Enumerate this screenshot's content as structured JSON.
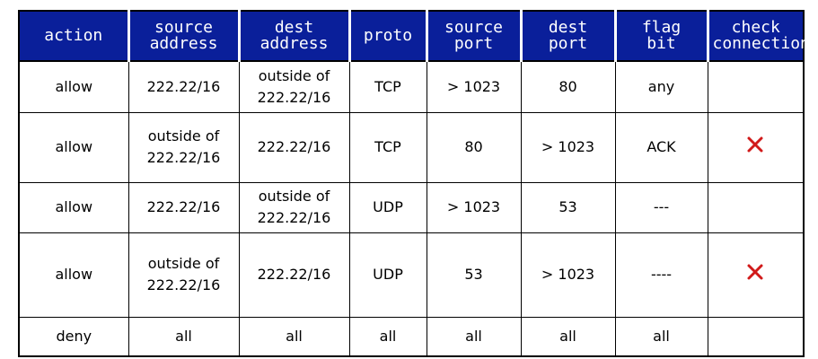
{
  "headers": [
    [
      "action"
    ],
    [
      "source",
      "address"
    ],
    [
      "dest",
      "address"
    ],
    [
      "proto"
    ],
    [
      "source",
      "port"
    ],
    [
      "dest",
      "port"
    ],
    [
      "flag",
      "bit"
    ],
    [
      "check",
      "connection"
    ]
  ],
  "rows": [
    {
      "action": "allow",
      "source_address": [
        "222.22/16"
      ],
      "dest_address": [
        "outside of",
        "222.22/16"
      ],
      "proto": "TCP",
      "source_port": "> 1023",
      "dest_port": "80",
      "flag_bit": "any",
      "check": ""
    },
    {
      "action": "allow",
      "source_address": [
        "outside of",
        "222.22/16"
      ],
      "dest_address": [
        "222.22/16"
      ],
      "proto": "TCP",
      "source_port": "80",
      "dest_port": "> 1023",
      "flag_bit": "ACK",
      "check": "x"
    },
    {
      "action": "allow",
      "source_address": [
        "222.22/16"
      ],
      "dest_address": [
        "outside of",
        "222.22/16"
      ],
      "proto": "UDP",
      "source_port": "> 1023",
      "dest_port": "53",
      "flag_bit": "---",
      "check": ""
    },
    {
      "action": "allow",
      "source_address": [
        "outside of",
        "222.22/16"
      ],
      "dest_address": [
        "222.22/16"
      ],
      "proto": "UDP",
      "source_port": "53",
      "dest_port": "> 1023",
      "flag_bit": "----",
      "check": "x"
    },
    {
      "action": "deny",
      "source_address": [
        "all"
      ],
      "dest_address": [
        "all"
      ],
      "proto": "all",
      "source_port": "all",
      "dest_port": "all",
      "flag_bit": "all",
      "check": ""
    }
  ],
  "colors": {
    "header_bg": "#0a1f9a",
    "header_text": "#ffffff",
    "x_mark": "#d11a1a"
  },
  "icons": {
    "check_mark": "x-mark-icon"
  }
}
